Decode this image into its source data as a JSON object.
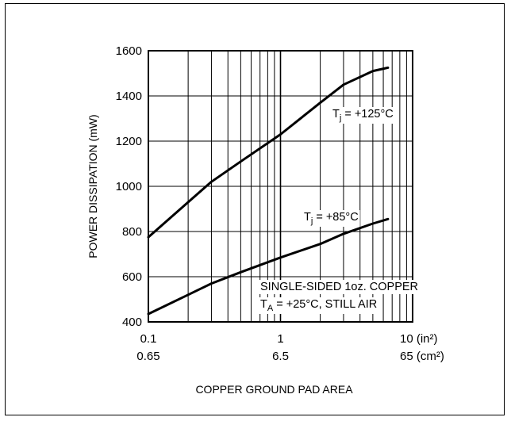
{
  "chart_data": {
    "type": "line",
    "x_scale": "log",
    "xlim": [
      0.1,
      10
    ],
    "ylim": [
      400,
      1600
    ],
    "grid": true,
    "x_tick_labels_in2": [
      "0.1",
      "1",
      "10 (in²)"
    ],
    "x_tick_labels_cm2": [
      "0.65",
      "6.5",
      "65 (cm²)"
    ],
    "y_ticks": [
      400,
      600,
      800,
      1000,
      1200,
      1400,
      1600
    ],
    "xlabel": "COPPER GROUND PAD AREA",
    "ylabel": "POWER DISSIPATION (mW)",
    "annotation_line1": "SINGLE-SIDED 1oz. COPPER",
    "annotation_line2": "T",
    "annotation_line2_sub": "A",
    "annotation_line2_rest": " = +25°C, STILL AIR",
    "series": [
      {
        "name": "T",
        "name_sub": "j",
        "name_rest": " = +125°C",
        "x": [
          0.1,
          0.2,
          0.3,
          0.5,
          1.0,
          2.0,
          3.0,
          5.0,
          6.5
        ],
        "y": [
          775,
          930,
          1020,
          1110,
          1230,
          1370,
          1450,
          1510,
          1525
        ]
      },
      {
        "name": "T",
        "name_sub": "j",
        "name_rest": " = +85°C",
        "x": [
          0.1,
          0.2,
          0.3,
          0.5,
          1.0,
          2.0,
          3.0,
          5.0,
          6.5
        ],
        "y": [
          435,
          520,
          570,
          620,
          685,
          745,
          790,
          835,
          855
        ]
      }
    ]
  }
}
